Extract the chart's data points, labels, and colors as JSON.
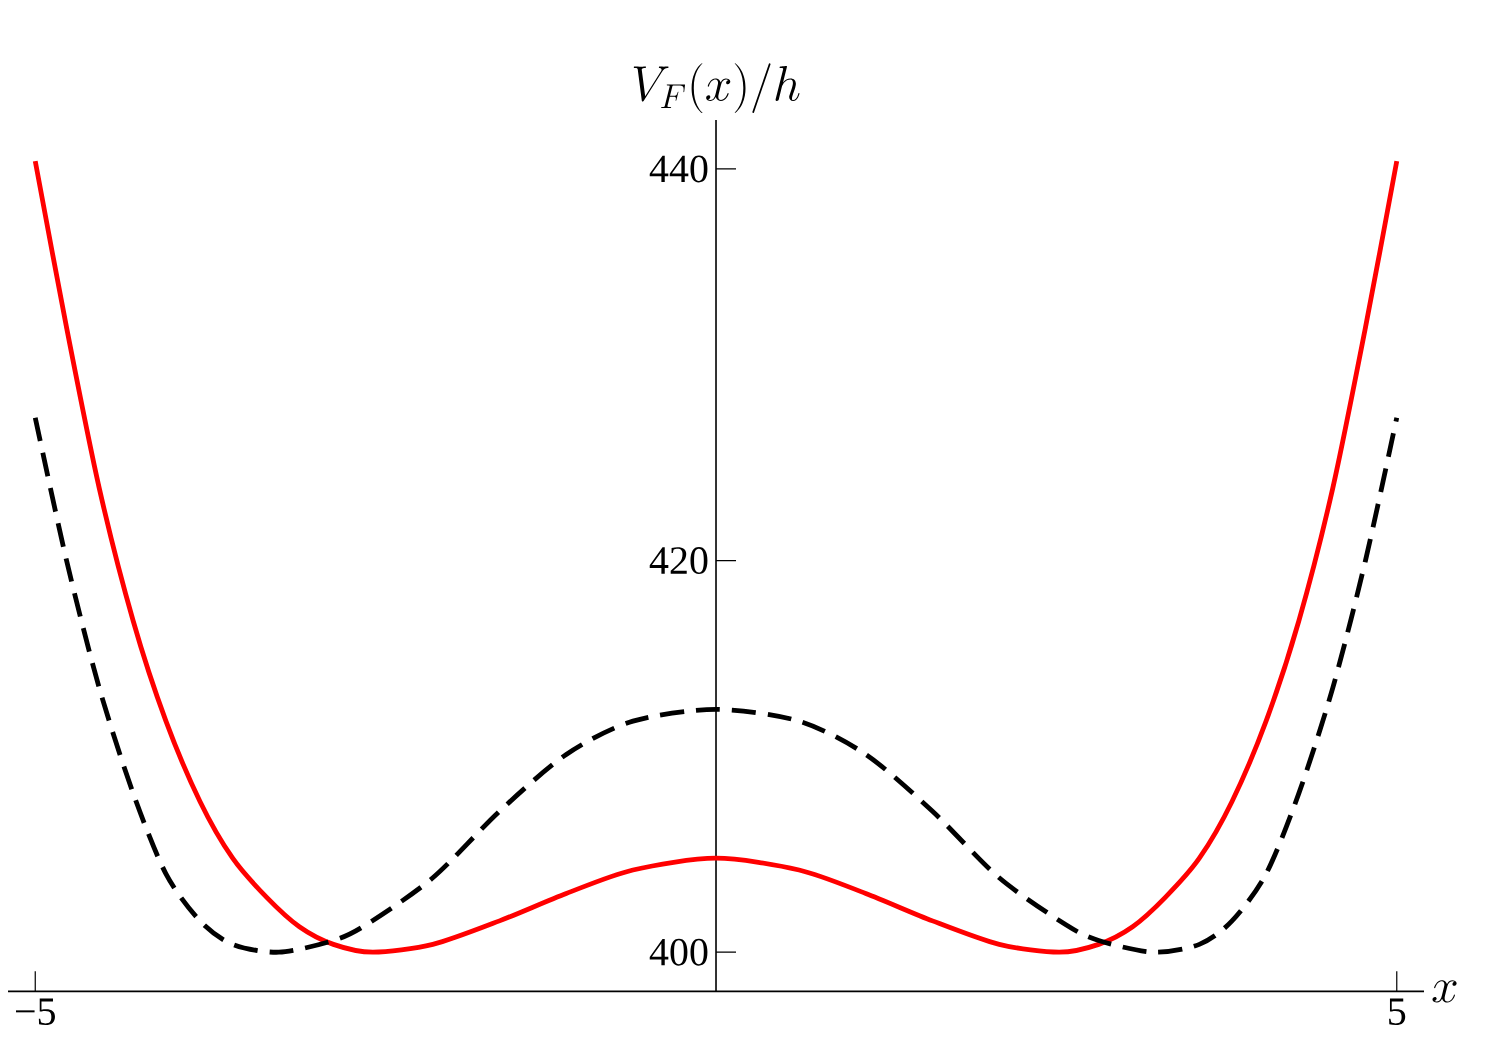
{
  "chart_data": {
    "type": "line",
    "ylabel": "V_F(x)/h",
    "xlabel": "x",
    "xlim": [
      -5.2,
      5.2
    ],
    "ylim": [
      398,
      442.5
    ],
    "xticks": [
      {
        "value": -5,
        "label": "−5"
      },
      5
    ],
    "yticks": [
      400,
      420,
      440
    ],
    "grid": false,
    "marker": "none",
    "series": [
      {
        "color": "#ff0000",
        "line_style": "solid",
        "x": [
          -5,
          -4.77,
          -4.53,
          -4.28,
          -4.04,
          -3.79,
          -3.55,
          -3.3,
          -3.06,
          -2.81,
          -2.52,
          -2.08,
          -1.59,
          -1.1,
          -0.61,
          0,
          0.61,
          1.1,
          1.59,
          2.08,
          2.52,
          2.81,
          3.06,
          3.3,
          3.55,
          3.79,
          4.04,
          4.28,
          4.53,
          4.77,
          5
        ],
        "values": [
          440.4,
          431.9,
          423.7,
          416.9,
          411.8,
          407.7,
          404.8,
          402.8,
          401.3,
          400.4,
          400.0,
          400.4,
          401.6,
          403.0,
          404.2,
          404.8,
          404.2,
          403.0,
          401.6,
          400.4,
          400.0,
          400.4,
          401.3,
          402.8,
          404.8,
          407.7,
          411.8,
          416.9,
          423.7,
          431.9,
          440.4
        ]
      },
      {
        "color": "#000000",
        "line_style": "dashed",
        "x": [
          -5,
          -4.77,
          -4.53,
          -4.28,
          -4.04,
          -3.79,
          -3.55,
          -3.21,
          -2.81,
          -2.57,
          -2.08,
          -1.59,
          -1.1,
          -0.61,
          0,
          0.61,
          1.1,
          1.59,
          2.08,
          2.57,
          2.81,
          3.21,
          3.55,
          3.79,
          4.04,
          4.28,
          4.53,
          4.77,
          5
        ],
        "values": [
          427.3,
          420.0,
          413.5,
          408.1,
          404.0,
          401.6,
          400.4,
          400.0,
          400.6,
          401.4,
          403.8,
          407.2,
          410.1,
          411.8,
          412.4,
          411.8,
          410.1,
          407.2,
          403.8,
          401.4,
          400.6,
          400.0,
          400.4,
          401.6,
          404.0,
          408.1,
          413.5,
          420.0,
          427.3
        ]
      }
    ]
  }
}
